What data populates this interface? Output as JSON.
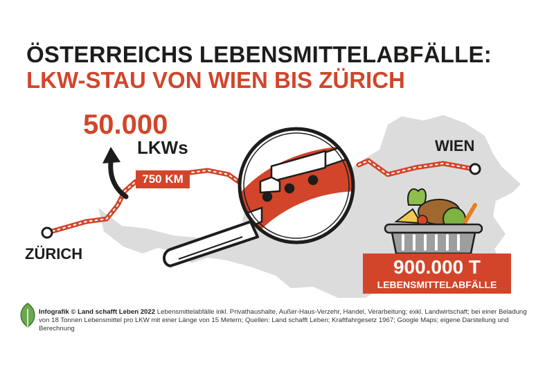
{
  "title": {
    "line1": "ÖSTERREICHS LEBENSMITTELABFÄLLE:",
    "line2": "LKW-STAU VON WIEN BIS ZÜRICH"
  },
  "trucks": {
    "count": "50.000",
    "unit": "LKWs"
  },
  "distance_label": "750 KM",
  "cities": {
    "start": "ZÜRICH",
    "end": "WIEN"
  },
  "waste": {
    "amount": "900.000 T",
    "label": "LEBENSMITTELABFÄLLE"
  },
  "footer": {
    "credit": "Infografik © Land schafft Leben 2022",
    "text": "Lebensmittelabfälle inkl. Privathaushalte, Außer-Haus-Verzehr, Handel, Verarbeitung; exkl. Landwirtschaft; bei einer Beladung von 18 Tonnen Lebensmittel pro LKW mit einer Länge von 15 Metern; Quellen: Land schafft Leben; Kraftfahrgesetz 1967; Google Maps; eigene Darstellung und Berechnung"
  },
  "colors": {
    "accent": "#d2452a",
    "text": "#1d1d1b",
    "map": "#dcdcdc",
    "logo": "#6aa84f"
  },
  "icons": [
    "arrow-up-icon",
    "magnifier-icon",
    "truck-icon",
    "food-pot-icon",
    "leaf-logo-icon",
    "route-start-marker",
    "route-end-marker"
  ]
}
